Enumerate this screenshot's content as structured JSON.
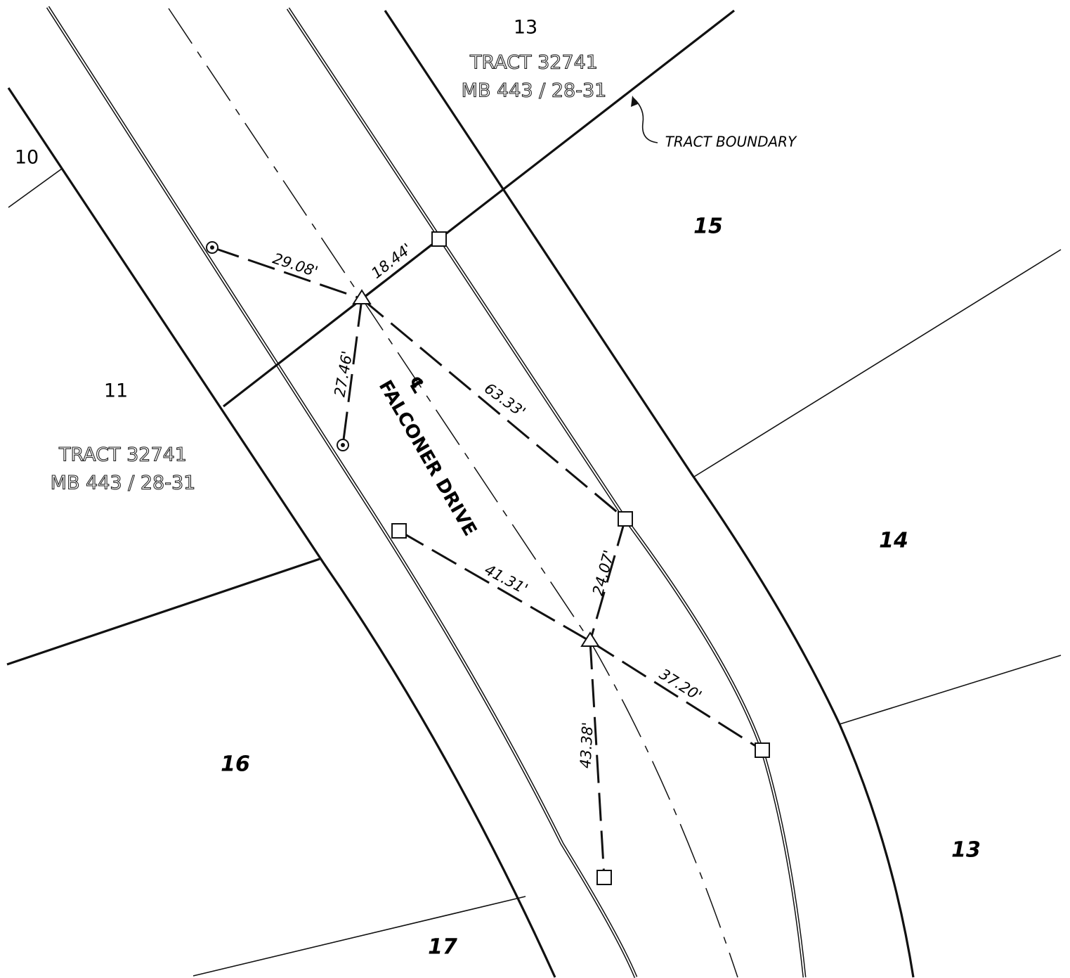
{
  "lots": [
    "13",
    "10",
    "15",
    "11",
    "14",
    "16",
    "13",
    "17"
  ],
  "tracts": [
    {
      "name": "TRACT 32741",
      "ref": "MB 443 / 28-31"
    },
    {
      "name": "TRACT 32741",
      "ref": "MB 443 / 28-31"
    }
  ],
  "annotation": "TRACT BOUNDARY",
  "street": {
    "symbol": "℄",
    "name": "FALCONER DRIVE"
  },
  "measurements": [
    "29.08'",
    "18.44'",
    "27.46'",
    "63.33'",
    "41.31'",
    "24.07'",
    "37.20'",
    "43.38'"
  ]
}
